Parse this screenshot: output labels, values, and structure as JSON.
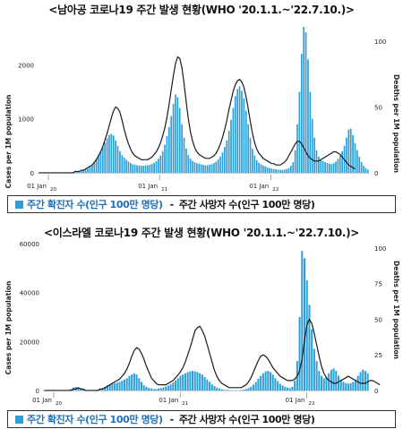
{
  "colors": {
    "bar": "#2b9fd9",
    "line": "#1a1a1a",
    "legend_text": "#1f6fb5"
  },
  "charts": [
    {
      "title": "<남아공 코로나19 주간 발생 현황(WHO '20.1.1.~'22.7.10.)>",
      "y_left_label": "Cases per 1M population",
      "y_right_label": "Deaths per 1M population",
      "y_left_ticks": [
        "0",
        "1000",
        "2000"
      ],
      "y_right_ticks": [
        "0",
        "50",
        "100"
      ],
      "x_ticks": [
        {
          "label": "01 Jan",
          "year": "20"
        },
        {
          "label": "01 Jan",
          "year": "21"
        },
        {
          "label": "01 Jan",
          "year": "22"
        }
      ],
      "legend_cases": "주간 확진자 수(인구 100만 명당)",
      "legend_deaths": "주간 사망자 수(인구 100만 명당)",
      "legend_dash": "-"
    },
    {
      "title": "<이스라엘 코로나19 주간 발생 현황(WHO '20.1.1.~'22.7.10.)>",
      "y_left_label": "Cases per 1M population",
      "y_right_label": "Deaths per 1M population",
      "y_left_ticks": [
        "0",
        "20000",
        "40000",
        "60000"
      ],
      "y_right_ticks": [
        "0",
        "25",
        "50",
        "75",
        "100"
      ],
      "x_ticks": [
        {
          "label": "01 Jan",
          "year": "20"
        },
        {
          "label": "01 Jan",
          "year": "21"
        },
        {
          "label": "01 Jan",
          "year": "22"
        }
      ],
      "legend_cases": "주간 확진자 수(인구 100만 명당)",
      "legend_deaths": "주간 사망자 수(인구 100만 명당)",
      "legend_dash": "-"
    }
  ],
  "chart_data": [
    {
      "type": "bar",
      "x_type": "week_index_from_2020-01-01",
      "ylim": [
        0,
        2800
      ],
      "y2lim": [
        0,
        115
      ],
      "series": [
        {
          "values": [
            0,
            0,
            0,
            0,
            0,
            0,
            0,
            0,
            0,
            0,
            0,
            0,
            2,
            5,
            8,
            10,
            12,
            12,
            15,
            20,
            30,
            45,
            60,
            80,
            110,
            150,
            200,
            260,
            330,
            400,
            470,
            560,
            640,
            700,
            720,
            690,
            600,
            500,
            400,
            330,
            280,
            240,
            210,
            180,
            160,
            150,
            140,
            135,
            130,
            130,
            135,
            140,
            150,
            165,
            185,
            215,
            260,
            320,
            400,
            520,
            680,
            850,
            1050,
            1280,
            1450,
            1400,
            1200,
            900,
            650,
            450,
            330,
            260,
            220,
            200,
            180,
            170,
            160,
            150,
            140,
            140,
            150,
            160,
            180,
            210,
            250,
            300,
            380,
            480,
            600,
            780,
            980,
            1200,
            1420,
            1550,
            1600,
            1520,
            1380,
            1150,
            900,
            650,
            450,
            320,
            240,
            190,
            160,
            140,
            120,
            100,
            90,
            80,
            70,
            65,
            60,
            55,
            55,
            60,
            70,
            90,
            130,
            200,
            420,
            900,
            1500,
            2200,
            2700,
            2600,
            2100,
            1500,
            1000,
            650,
            420,
            300,
            250,
            220,
            200,
            180,
            170,
            160,
            180,
            210,
            260,
            320,
            400,
            500,
            650,
            800,
            820,
            700,
            550,
            420,
            300,
            200,
            130,
            90,
            60
          ]
        },
        {
          "type": "line",
          "values": [
            0,
            0,
            0,
            0,
            0,
            0,
            0,
            0,
            0,
            0,
            0,
            0,
            0,
            0,
            0,
            0,
            0,
            1,
            1,
            1,
            2,
            2,
            3,
            4,
            5,
            6,
            8,
            10,
            13,
            16,
            20,
            25,
            30,
            36,
            42,
            47,
            50,
            49,
            46,
            40,
            33,
            27,
            22,
            18,
            15,
            13,
            12,
            11,
            10,
            10,
            10,
            10,
            11,
            12,
            14,
            16,
            19,
            23,
            28,
            34,
            42,
            52,
            63,
            74,
            83,
            88,
            87,
            80,
            68,
            54,
            41,
            31,
            24,
            19,
            16,
            14,
            13,
            12,
            11,
            11,
            11,
            12,
            13,
            15,
            18,
            22,
            27,
            33,
            40,
            48,
            55,
            62,
            67,
            70,
            71,
            69,
            65,
            58,
            49,
            39,
            30,
            23,
            18,
            15,
            13,
            11,
            10,
            9,
            8,
            7,
            7,
            6,
            6,
            6,
            7,
            8,
            10,
            13,
            16,
            19,
            22,
            24,
            24,
            22,
            19,
            16,
            13,
            11,
            10,
            9,
            9,
            9,
            10,
            11,
            12,
            13,
            14,
            15,
            16,
            16,
            15,
            14,
            12,
            10,
            8,
            6,
            5,
            4,
            3
          ]
        }
      ]
    },
    {
      "type": "bar",
      "x_type": "week_index_from_2020-01-01",
      "ylim": [
        0,
        60000
      ],
      "y2lim": [
        0,
        103
      ],
      "series": [
        {
          "values": [
            0,
            0,
            0,
            0,
            0,
            0,
            0,
            0,
            0,
            0,
            200,
            600,
            1200,
            1500,
            1200,
            800,
            400,
            200,
            100,
            100,
            100,
            200,
            300,
            600,
            1000,
            1500,
            2000,
            2500,
            2800,
            3000,
            3200,
            3500,
            4000,
            4500,
            5000,
            6000,
            6500,
            7000,
            6500,
            5000,
            3500,
            2200,
            1500,
            1000,
            800,
            600,
            600,
            800,
            1000,
            1300,
            1600,
            2000,
            2500,
            3200,
            4000,
            5000,
            6000,
            6500,
            7000,
            7500,
            7800,
            8000,
            7800,
            7500,
            7000,
            6500,
            5500,
            4500,
            3500,
            2500,
            1800,
            1200,
            800,
            500,
            300,
            200,
            150,
            100,
            100,
            100,
            100,
            200,
            300,
            600,
            1000,
            1600,
            2400,
            3500,
            4800,
            6000,
            7000,
            7800,
            8000,
            7500,
            6500,
            5000,
            3800,
            2700,
            2000,
            1500,
            1200,
            1000,
            1500,
            4000,
            12000,
            30000,
            57000,
            54000,
            45000,
            35000,
            25000,
            17000,
            12000,
            8000,
            6000,
            5000,
            5500,
            7000,
            8500,
            9000,
            8000,
            6000,
            4500,
            3500,
            3000,
            2800,
            3000,
            3500,
            4500,
            6000,
            7500,
            8500,
            8000,
            7000
          ]
        },
        {
          "type": "line",
          "values": [
            0,
            0,
            0,
            0,
            0,
            0,
            0,
            0,
            0,
            0,
            0,
            0,
            1,
            1,
            2,
            1,
            1,
            0,
            0,
            0,
            0,
            0,
            0,
            1,
            1,
            2,
            3,
            4,
            5,
            6,
            7,
            8,
            10,
            12,
            15,
            19,
            24,
            28,
            30,
            29,
            26,
            22,
            17,
            13,
            9,
            7,
            5,
            4,
            4,
            4,
            4,
            5,
            6,
            7,
            9,
            11,
            13,
            16,
            20,
            25,
            30,
            36,
            42,
            44,
            45,
            42,
            38,
            32,
            26,
            20,
            14,
            10,
            7,
            5,
            4,
            3,
            2,
            2,
            2,
            2,
            2,
            2,
            3,
            4,
            6,
            9,
            13,
            17,
            21,
            24,
            25,
            24,
            22,
            19,
            16,
            14,
            12,
            10,
            9,
            8,
            7,
            7,
            7,
            8,
            10,
            14,
            22,
            35,
            46,
            50,
            47,
            40,
            32,
            24,
            17,
            12,
            9,
            7,
            6,
            5,
            5,
            6,
            7,
            8,
            9,
            10,
            9,
            8,
            7,
            6,
            5,
            5,
            5,
            6,
            7,
            7,
            6,
            5,
            4
          ]
        }
      ]
    }
  ]
}
